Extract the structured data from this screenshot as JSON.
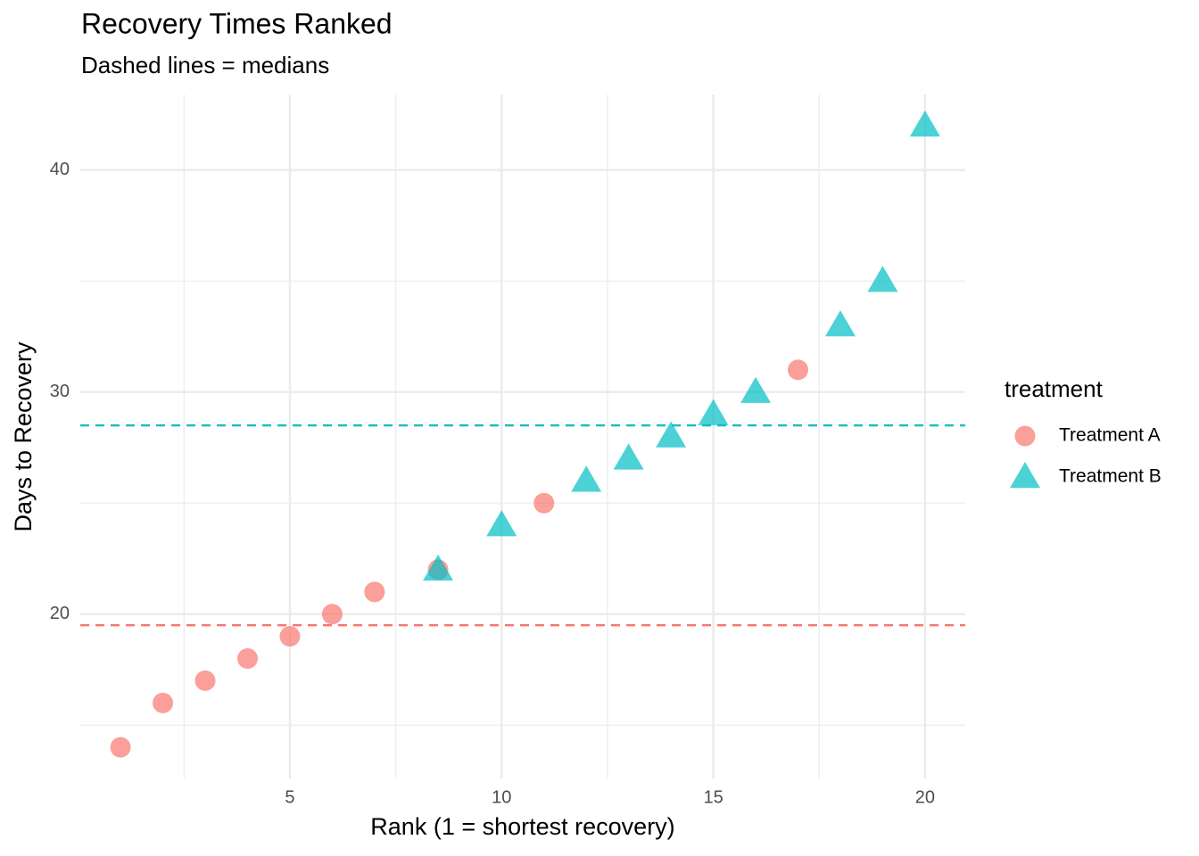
{
  "chart_data": {
    "type": "scatter",
    "title": "Recovery Times Ranked",
    "subtitle": "Dashed lines = medians",
    "x_label": "Rank (1 = shortest recovery)",
    "y_label": "Days to Recovery",
    "legend_title": "treatment",
    "legend_position": "right",
    "grid": true,
    "xlim": [
      0.05,
      20.95
    ],
    "ylim": [
      12.6,
      43.4
    ],
    "xticks": [
      5,
      10,
      15,
      20
    ],
    "yticks": [
      20,
      30,
      40
    ],
    "x_minor_grid": [
      2.5,
      7.5,
      12.5,
      17.5
    ],
    "y_minor_grid": [
      15,
      25,
      35
    ],
    "series": [
      {
        "name": "Treatment A",
        "color": "#F8766D",
        "shape": "circle",
        "x": [
          1,
          2,
          3,
          4,
          5,
          6,
          7,
          8.5,
          11,
          17
        ],
        "values": [
          14,
          16,
          17,
          18,
          19,
          20,
          21,
          22,
          25,
          31
        ]
      },
      {
        "name": "Treatment B",
        "color": "#00BFC4",
        "shape": "triangle",
        "x": [
          8.5,
          10,
          12,
          13,
          14,
          15,
          16,
          18,
          19,
          20
        ],
        "values": [
          22,
          24,
          26,
          27,
          28,
          29,
          30,
          33,
          35,
          42
        ]
      }
    ],
    "reference_lines": [
      {
        "value": 19.5,
        "color": "#F8766D"
      },
      {
        "value": 28.5,
        "color": "#00BFC4"
      }
    ]
  }
}
